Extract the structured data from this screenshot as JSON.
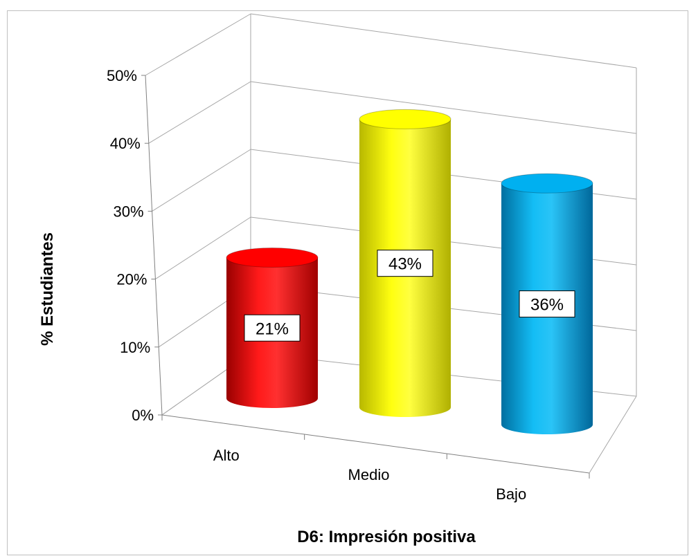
{
  "chart_data": {
    "type": "bar",
    "style": "3d-cylinder",
    "categories": [
      "Alto",
      "Medio",
      "Bajo"
    ],
    "values": [
      21,
      43,
      36
    ],
    "value_labels": [
      "21%",
      "43%",
      "36%"
    ],
    "colors": [
      "#ff0000",
      "#ffff00",
      "#00b0f0"
    ],
    "title": "",
    "xlabel": "D6: Impresión positiva",
    "ylabel": "%  Estudiantes",
    "ylim": [
      0,
      50
    ],
    "yticks": [
      0,
      10,
      20,
      30,
      40,
      50
    ],
    "ytick_labels": [
      "0%",
      "10%",
      "20%",
      "30%",
      "40%",
      "50%"
    ],
    "grid": true,
    "legend": "none"
  }
}
